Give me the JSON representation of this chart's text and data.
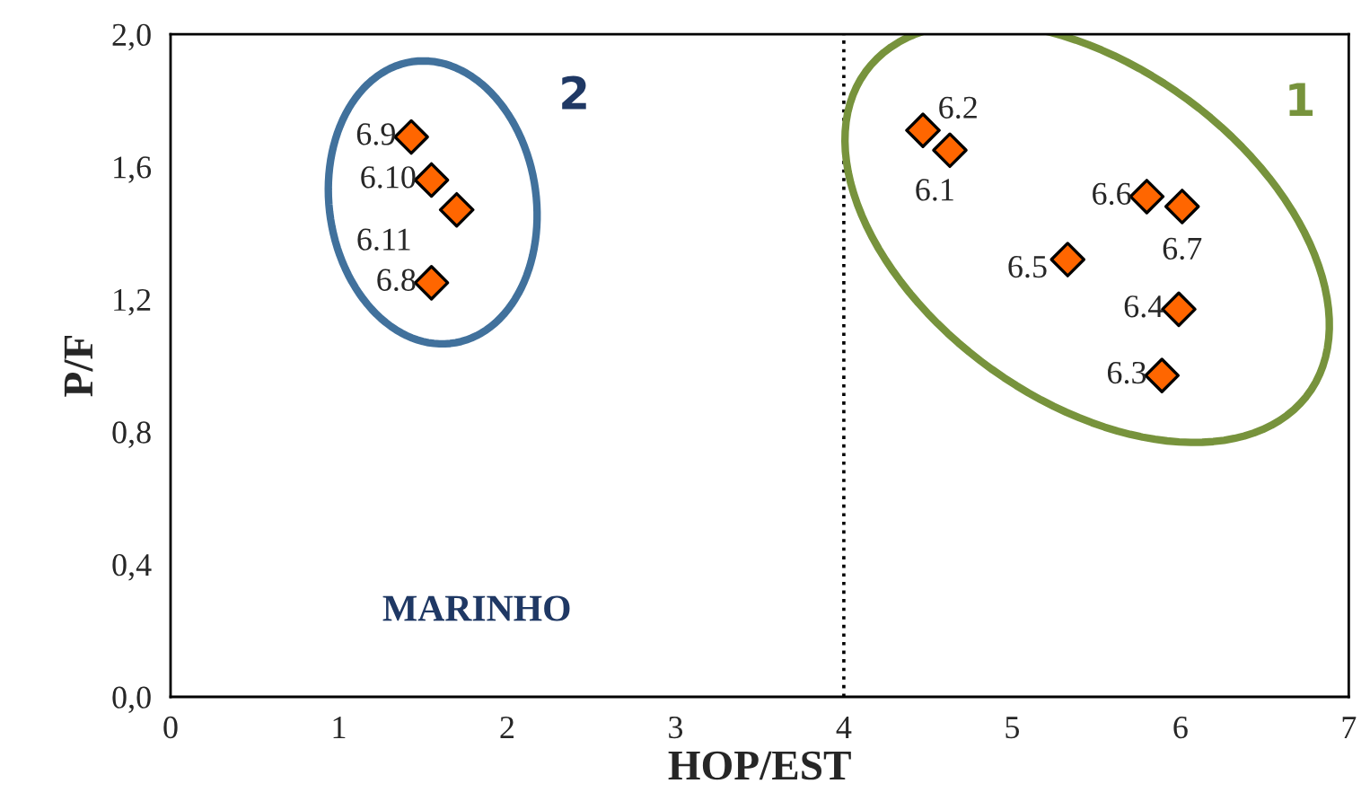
{
  "chart_data": {
    "type": "scatter",
    "xlabel": "HOP/EST",
    "ylabel": "P/F",
    "marker": "diamond",
    "grid": false,
    "legend": false,
    "series": [
      {
        "name": "2",
        "color": "#ff6600",
        "x": [
          1.43,
          1.55,
          1.7,
          1.55
        ],
        "values": [
          1.69,
          1.56,
          1.47,
          1.25
        ]
      },
      {
        "name": "1",
        "color": "#ff6600",
        "x": [
          4.47,
          4.63,
          5.8,
          6.01,
          5.33,
          5.99,
          5.89
        ],
        "values": [
          1.71,
          1.65,
          1.51,
          1.48,
          1.32,
          1.17,
          0.97
        ]
      }
    ],
    "xlim": [
      0,
      7
    ],
    "xticks": [
      0,
      1,
      2,
      3,
      4,
      5,
      6,
      7
    ],
    "ylim": [
      0,
      2
    ],
    "yticks": [
      {
        "value": 0,
        "label": "0,0"
      },
      {
        "value": 0.4,
        "label": "0,4"
      },
      {
        "value": 0.8,
        "label": "0,8"
      },
      {
        "value": 1.2,
        "label": "1,2"
      },
      {
        "value": 1.6,
        "label": "1,6"
      },
      {
        "value": 2.0,
        "label": "2,0"
      }
    ],
    "ref_lines": [
      {
        "axis": "x",
        "value": 4,
        "line_style": "dotted",
        "color": "#000000"
      }
    ],
    "annotations": [
      {
        "text": "6.9",
        "x": 1.43,
        "y": 1.69
      },
      {
        "text": "6.10",
        "x": 1.55,
        "y": 1.56
      },
      {
        "text": "6.11",
        "x": 1.7,
        "y": 1.47
      },
      {
        "text": "6.8",
        "x": 1.55,
        "y": 1.25
      },
      {
        "text": "6.2",
        "x": 4.47,
        "y": 1.71
      },
      {
        "text": "6.1",
        "x": 4.63,
        "y": 1.65
      },
      {
        "text": "6.6",
        "x": 5.8,
        "y": 1.51
      },
      {
        "text": "6.7",
        "x": 6.01,
        "y": 1.48
      },
      {
        "text": "6.5",
        "x": 5.33,
        "y": 1.32
      },
      {
        "text": "6.4",
        "x": 5.99,
        "y": 1.17
      },
      {
        "text": "6.3",
        "x": 5.89,
        "y": 0.97
      },
      "MARINHO"
    ]
  }
}
